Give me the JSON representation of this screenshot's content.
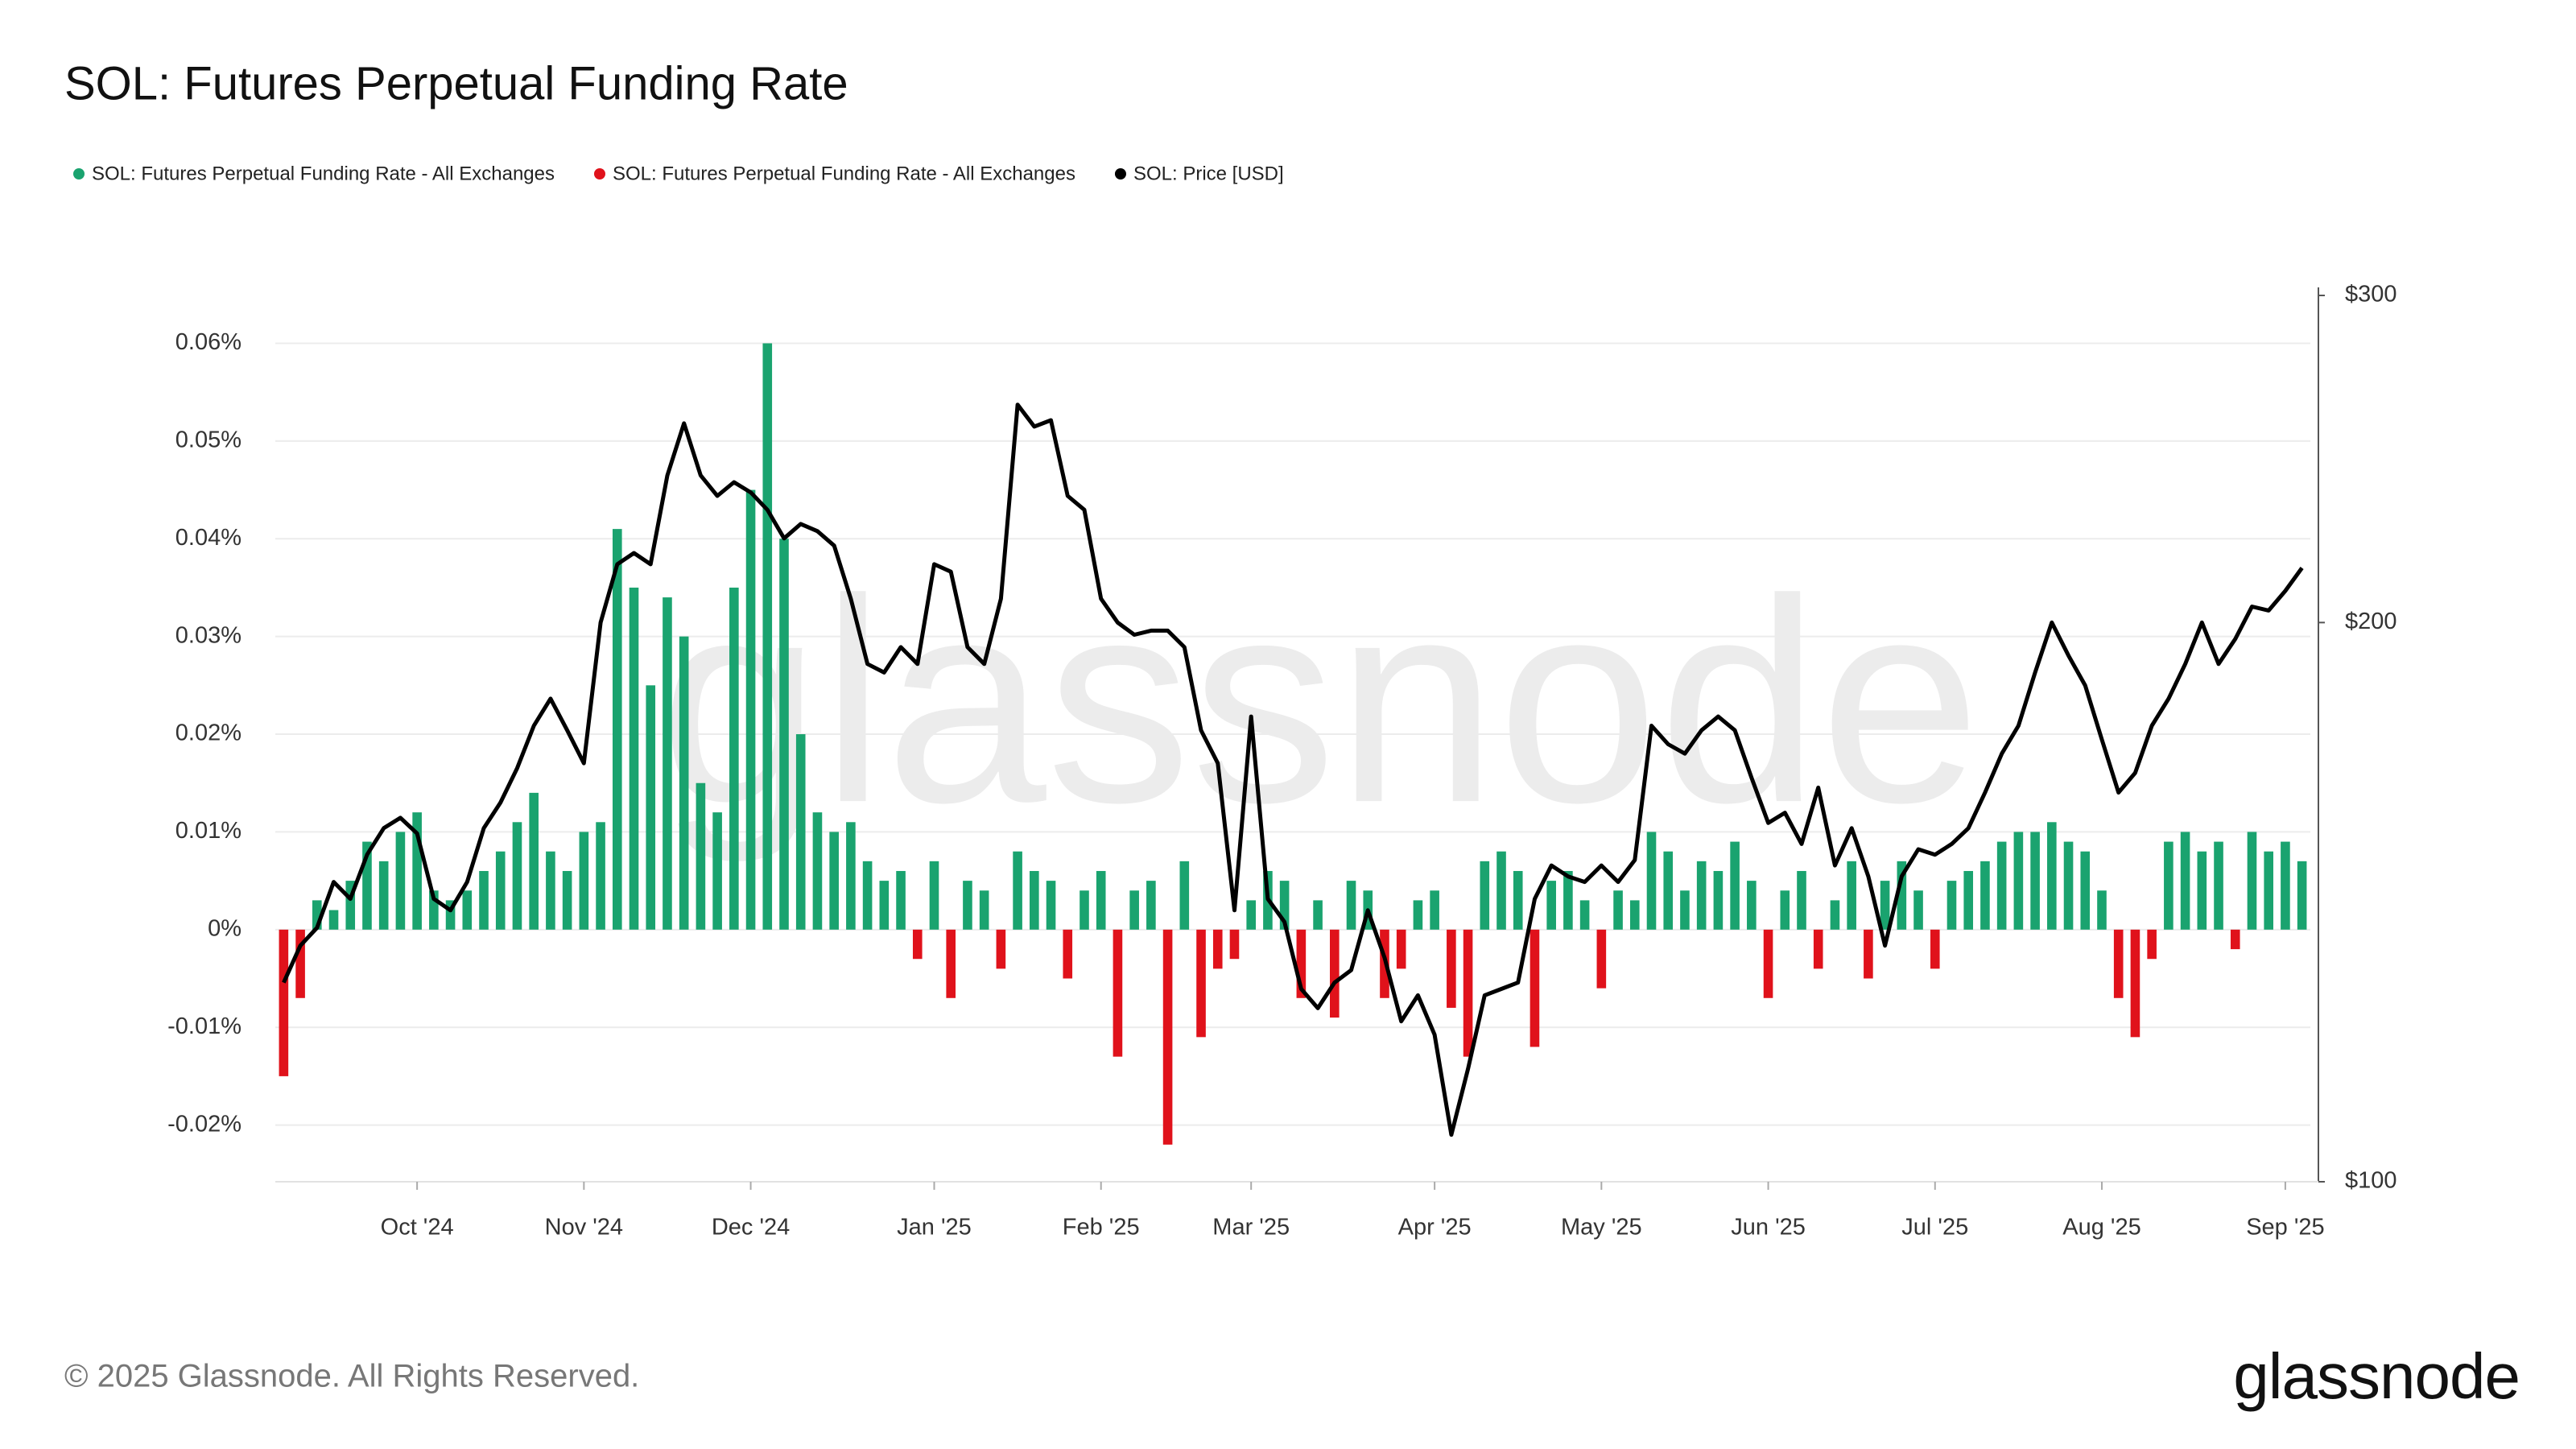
{
  "chart_data": {
    "type": "bar",
    "title": "SOL: Futures Perpetual Funding Rate",
    "categories": [
      null,
      null,
      null,
      null,
      null,
      null,
      null,
      null,
      "Oct '24",
      null,
      null,
      null,
      null,
      null,
      null,
      null,
      null,
      null,
      "Nov '24",
      null,
      null,
      null,
      null,
      null,
      null,
      null,
      null,
      null,
      "Dec '24",
      null,
      null,
      null,
      null,
      null,
      null,
      null,
      null,
      null,
      null,
      "Jan '25",
      null,
      null,
      null,
      null,
      null,
      null,
      null,
      null,
      null,
      "Feb '25",
      null,
      null,
      null,
      null,
      null,
      null,
      null,
      null,
      "Mar '25",
      null,
      null,
      null,
      null,
      null,
      null,
      null,
      null,
      null,
      null,
      "Apr '25",
      null,
      null,
      null,
      null,
      null,
      null,
      null,
      null,
      null,
      "May '25",
      null,
      null,
      null,
      null,
      null,
      null,
      null,
      null,
      null,
      "Jun '25",
      null,
      null,
      null,
      null,
      null,
      null,
      null,
      null,
      null,
      "Jul '25",
      null,
      null,
      null,
      null,
      null,
      null,
      null,
      null,
      null,
      "Aug '25",
      null,
      null,
      null,
      null,
      null,
      null,
      null,
      null,
      null,
      null,
      "Sep '25",
      null
    ],
    "series": [
      {
        "name": "SOL: Futures Perpetual Funding Rate - All Exchanges",
        "color": "#1aa36f",
        "type": "bar",
        "values": [
          null,
          null,
          0.003,
          0.002,
          0.005,
          0.009,
          0.007,
          0.01,
          0.012,
          0.004,
          0.003,
          0.004,
          0.006,
          0.008,
          0.011,
          0.014,
          0.008,
          0.006,
          0.01,
          0.011,
          0.041,
          0.035,
          0.025,
          0.034,
          0.03,
          0.015,
          0.012,
          0.035,
          0.045,
          0.06,
          0.04,
          0.02,
          0.012,
          0.01,
          0.011,
          0.007,
          0.005,
          0.006,
          null,
          0.007,
          null,
          0.005,
          0.004,
          null,
          0.008,
          0.006,
          0.005,
          null,
          0.004,
          0.006,
          null,
          0.004,
          0.005,
          null,
          0.007,
          null,
          null,
          null,
          0.003,
          0.006,
          0.005,
          null,
          0.003,
          null,
          0.005,
          0.004,
          null,
          null,
          0.003,
          0.004,
          null,
          null,
          0.007,
          0.008,
          0.006,
          null,
          0.005,
          0.006,
          0.003,
          null,
          0.004,
          0.003,
          0.01,
          0.008,
          0.004,
          0.007,
          0.006,
          0.009,
          0.005,
          null,
          0.004,
          0.006,
          null,
          0.003,
          0.007,
          null,
          0.005,
          0.007,
          0.004,
          null,
          0.005,
          0.006,
          0.007,
          0.009,
          0.01,
          0.01,
          0.011,
          0.009,
          0.008,
          0.004,
          null,
          null,
          null,
          0.009,
          0.01,
          0.008,
          0.009,
          null,
          0.01,
          0.008,
          0.009,
          0.007
        ]
      },
      {
        "name": "SOL: Futures Perpetual Funding Rate - All Exchanges",
        "color": "#e0121b",
        "type": "bar",
        "values": [
          -0.015,
          -0.007,
          null,
          null,
          null,
          null,
          null,
          null,
          null,
          null,
          null,
          null,
          null,
          null,
          null,
          null,
          null,
          null,
          null,
          null,
          null,
          null,
          null,
          null,
          null,
          null,
          null,
          null,
          null,
          null,
          null,
          null,
          null,
          null,
          null,
          null,
          null,
          null,
          -0.003,
          null,
          -0.007,
          null,
          null,
          -0.004,
          null,
          null,
          null,
          -0.005,
          null,
          null,
          -0.013,
          null,
          null,
          -0.022,
          null,
          -0.011,
          -0.004,
          -0.003,
          null,
          null,
          null,
          -0.007,
          null,
          -0.009,
          null,
          null,
          -0.007,
          -0.004,
          null,
          null,
          -0.008,
          -0.013,
          null,
          null,
          null,
          -0.012,
          null,
          null,
          null,
          -0.006,
          null,
          null,
          null,
          null,
          null,
          null,
          null,
          null,
          null,
          -0.007,
          null,
          null,
          -0.004,
          null,
          null,
          -0.005,
          null,
          null,
          null,
          -0.004,
          null,
          null,
          null,
          null,
          null,
          null,
          null,
          null,
          null,
          null,
          -0.007,
          -0.011,
          -0.003,
          null,
          null,
          null,
          null,
          -0.002,
          null,
          null,
          null,
          null
        ]
      },
      {
        "name": "SOL: Price [USD]",
        "color": "#000000",
        "type": "line",
        "axis": "y2",
        "values": [
          128,
          134,
          137,
          145,
          142,
          150,
          155,
          157,
          154,
          142,
          140,
          145,
          155,
          160,
          167,
          176,
          182,
          175,
          168,
          200,
          215,
          218,
          215,
          240,
          256,
          240,
          234,
          238,
          235,
          230,
          222,
          226,
          224,
          220,
          206,
          190,
          188,
          194,
          190,
          215,
          213,
          194,
          190,
          206,
          262,
          255,
          257,
          234,
          230,
          206,
          200,
          197,
          198,
          198,
          194,
          175,
          168,
          140,
          178,
          142,
          138,
          127,
          124,
          128,
          130,
          140,
          132,
          122,
          126,
          120,
          106,
          115,
          126,
          127,
          128,
          142,
          148,
          146,
          145,
          148,
          145,
          149,
          176,
          172,
          170,
          175,
          178,
          175,
          165,
          156,
          158,
          152,
          163,
          148,
          155,
          146,
          134,
          146,
          151,
          150,
          152,
          155,
          162,
          170,
          176,
          188,
          200,
          192,
          185,
          173,
          162,
          166,
          176,
          182,
          190,
          200,
          190,
          196,
          204,
          203,
          208,
          214
        ]
      }
    ],
    "ylim": [
      -0.0258,
      0.0649
    ],
    "yticks": [
      {
        "value": -0.02,
        "label": "-0.02%"
      },
      {
        "value": -0.01,
        "label": "-0.01%"
      },
      {
        "value": 0,
        "label": "0%"
      },
      {
        "value": 0.01,
        "label": "0.01%"
      },
      {
        "value": 0.02,
        "label": "0.02%"
      },
      {
        "value": 0.03,
        "label": "0.03%"
      },
      {
        "value": 0.04,
        "label": "0.04%"
      },
      {
        "value": 0.05,
        "label": "0.05%"
      },
      {
        "value": 0.06,
        "label": "0.06%"
      }
    ],
    "y2lim": [
      100,
      300
    ],
    "y2ticks": [
      {
        "value": 100,
        "label": "$100"
      },
      {
        "value": 200,
        "label": "$200"
      },
      {
        "value": 300,
        "label": "$300"
      }
    ],
    "y2log": true,
    "grid": true,
    "watermark": "glassnode"
  },
  "footer": {
    "copyright": "© 2025 Glassnode. All Rights Reserved.",
    "logo": "glassnode"
  }
}
